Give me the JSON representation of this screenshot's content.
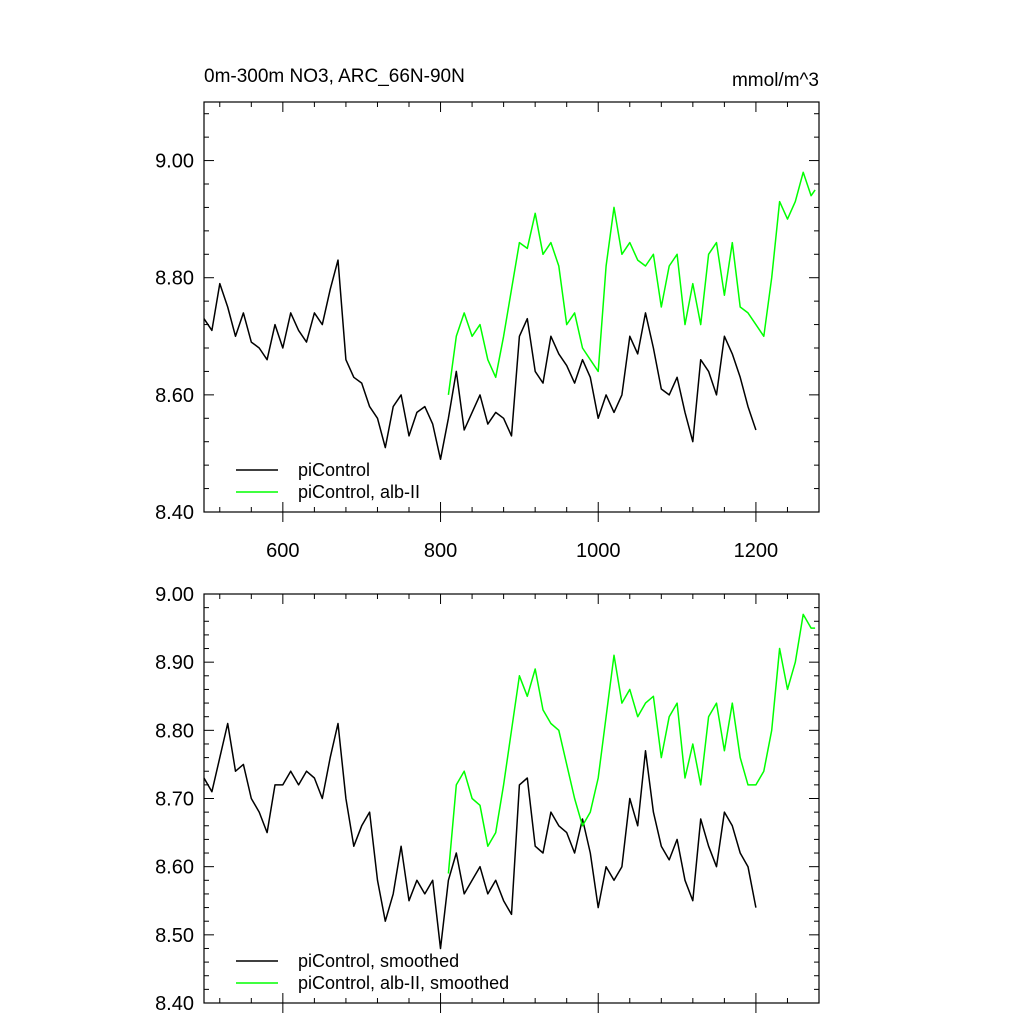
{
  "figure": {
    "title": "0m-300m NO3, ARC_66N-90N",
    "units": "mmol/m^3"
  },
  "colors": {
    "control": "#000000",
    "alb": "#00ff00",
    "axis": "#000000"
  },
  "chart_data": [
    {
      "type": "line",
      "title": "0m-300m NO3, ARC_66N-90N",
      "units": "mmol/m^3",
      "xlim": [
        500,
        1280
      ],
      "ylim": [
        8.4,
        9.1
      ],
      "xticks": [
        600,
        800,
        1000,
        1200
      ],
      "xtick_labels": [
        "600",
        "800",
        "1000",
        "1200"
      ],
      "yticks": [
        8.4,
        8.6,
        8.8,
        9.0
      ],
      "ytick_labels": [
        "8.40",
        "8.60",
        "8.80",
        "9.00"
      ],
      "legend_position": "bottom-left",
      "grid": false,
      "series": [
        {
          "name": "piControl",
          "color": "#000000",
          "x": [
            500,
            510,
            520,
            530,
            540,
            550,
            560,
            570,
            580,
            590,
            600,
            610,
            620,
            630,
            640,
            650,
            660,
            670,
            680,
            690,
            700,
            710,
            720,
            730,
            740,
            750,
            760,
            770,
            780,
            790,
            800,
            810,
            820,
            830,
            840,
            850,
            860,
            870,
            880,
            890,
            900,
            910,
            920,
            930,
            940,
            950,
            960,
            970,
            980,
            990,
            1000,
            1010,
            1020,
            1030,
            1040,
            1050,
            1060,
            1070,
            1080,
            1090,
            1100,
            1110,
            1120,
            1130,
            1140,
            1150,
            1160,
            1170,
            1180,
            1190,
            1200
          ],
          "y": [
            8.73,
            8.71,
            8.79,
            8.75,
            8.7,
            8.74,
            8.69,
            8.68,
            8.66,
            8.72,
            8.68,
            8.74,
            8.71,
            8.69,
            8.74,
            8.72,
            8.78,
            8.83,
            8.66,
            8.63,
            8.62,
            8.58,
            8.56,
            8.51,
            8.58,
            8.6,
            8.53,
            8.57,
            8.58,
            8.55,
            8.49,
            8.56,
            8.64,
            8.54,
            8.57,
            8.6,
            8.55,
            8.57,
            8.56,
            8.53,
            8.7,
            8.73,
            8.64,
            8.62,
            8.7,
            8.67,
            8.65,
            8.62,
            8.66,
            8.63,
            8.56,
            8.6,
            8.57,
            8.6,
            8.7,
            8.67,
            8.74,
            8.68,
            8.61,
            8.6,
            8.63,
            8.57,
            8.52,
            8.66,
            8.64,
            8.6,
            8.7,
            8.67,
            8.63,
            8.58,
            8.54
          ]
        },
        {
          "name": "piControl, alb-II",
          "color": "#00ff00",
          "x": [
            810,
            820,
            830,
            840,
            850,
            860,
            870,
            880,
            890,
            900,
            910,
            920,
            930,
            940,
            950,
            960,
            970,
            980,
            990,
            1000,
            1010,
            1020,
            1030,
            1040,
            1050,
            1060,
            1070,
            1080,
            1090,
            1100,
            1110,
            1120,
            1130,
            1140,
            1150,
            1160,
            1170,
            1180,
            1190,
            1200,
            1210,
            1220,
            1230,
            1240,
            1250,
            1260,
            1270,
            1275
          ],
          "y": [
            8.6,
            8.7,
            8.74,
            8.7,
            8.72,
            8.66,
            8.63,
            8.7,
            8.78,
            8.86,
            8.85,
            8.91,
            8.84,
            8.86,
            8.82,
            8.72,
            8.74,
            8.68,
            8.66,
            8.64,
            8.82,
            8.92,
            8.84,
            8.86,
            8.83,
            8.82,
            8.84,
            8.75,
            8.82,
            8.84,
            8.72,
            8.79,
            8.72,
            8.84,
            8.86,
            8.77,
            8.86,
            8.75,
            8.74,
            8.72,
            8.7,
            8.8,
            8.93,
            8.9,
            8.93,
            8.98,
            8.94,
            8.95
          ]
        }
      ]
    },
    {
      "type": "line",
      "xlim": [
        500,
        1280
      ],
      "ylim": [
        8.4,
        9.0
      ],
      "xticks": [
        600,
        800,
        1000,
        1200
      ],
      "xtick_labels": [
        "",
        "",
        "",
        ""
      ],
      "yticks": [
        8.4,
        8.5,
        8.6,
        8.7,
        8.8,
        8.9,
        9.0
      ],
      "ytick_labels": [
        "8.40",
        "8.50",
        "8.60",
        "8.70",
        "8.80",
        "8.90",
        "9.00"
      ],
      "legend_position": "bottom-left",
      "grid": false,
      "series": [
        {
          "name": "piControl, smoothed",
          "color": "#000000",
          "x": [
            500,
            510,
            520,
            530,
            540,
            550,
            560,
            570,
            580,
            590,
            600,
            610,
            620,
            630,
            640,
            650,
            660,
            670,
            680,
            690,
            700,
            710,
            720,
            730,
            740,
            750,
            760,
            770,
            780,
            790,
            800,
            810,
            820,
            830,
            840,
            850,
            860,
            870,
            880,
            890,
            900,
            910,
            920,
            930,
            940,
            950,
            960,
            970,
            980,
            990,
            1000,
            1010,
            1020,
            1030,
            1040,
            1050,
            1060,
            1070,
            1080,
            1090,
            1100,
            1110,
            1120,
            1130,
            1140,
            1150,
            1160,
            1170,
            1180,
            1190,
            1200
          ],
          "y": [
            8.73,
            8.71,
            8.76,
            8.81,
            8.74,
            8.75,
            8.7,
            8.68,
            8.65,
            8.72,
            8.72,
            8.74,
            8.72,
            8.74,
            8.73,
            8.7,
            8.76,
            8.81,
            8.7,
            8.63,
            8.66,
            8.68,
            8.58,
            8.52,
            8.56,
            8.63,
            8.55,
            8.58,
            8.56,
            8.58,
            8.48,
            8.58,
            8.62,
            8.56,
            8.58,
            8.6,
            8.56,
            8.58,
            8.55,
            8.53,
            8.72,
            8.73,
            8.63,
            8.62,
            8.68,
            8.66,
            8.65,
            8.62,
            8.67,
            8.62,
            8.54,
            8.6,
            8.58,
            8.6,
            8.7,
            8.66,
            8.77,
            8.68,
            8.63,
            8.61,
            8.64,
            8.58,
            8.55,
            8.67,
            8.63,
            8.6,
            8.68,
            8.66,
            8.62,
            8.6,
            8.54
          ]
        },
        {
          "name": "piControl, alb-II, smoothed",
          "color": "#00ff00",
          "x": [
            810,
            820,
            830,
            840,
            850,
            860,
            870,
            880,
            890,
            900,
            910,
            920,
            930,
            940,
            950,
            960,
            970,
            980,
            990,
            1000,
            1010,
            1020,
            1030,
            1040,
            1050,
            1060,
            1070,
            1080,
            1090,
            1100,
            1110,
            1120,
            1130,
            1140,
            1150,
            1160,
            1170,
            1180,
            1190,
            1200,
            1210,
            1220,
            1230,
            1240,
            1250,
            1260,
            1270,
            1275
          ],
          "y": [
            8.59,
            8.72,
            8.74,
            8.7,
            8.69,
            8.63,
            8.65,
            8.72,
            8.8,
            8.88,
            8.85,
            8.89,
            8.83,
            8.81,
            8.8,
            8.75,
            8.7,
            8.66,
            8.68,
            8.73,
            8.82,
            8.91,
            8.84,
            8.86,
            8.82,
            8.84,
            8.85,
            8.76,
            8.82,
            8.84,
            8.73,
            8.78,
            8.72,
            8.82,
            8.84,
            8.77,
            8.84,
            8.76,
            8.72,
            8.72,
            8.74,
            8.8,
            8.92,
            8.86,
            8.9,
            8.97,
            8.95,
            8.95
          ]
        }
      ]
    }
  ]
}
